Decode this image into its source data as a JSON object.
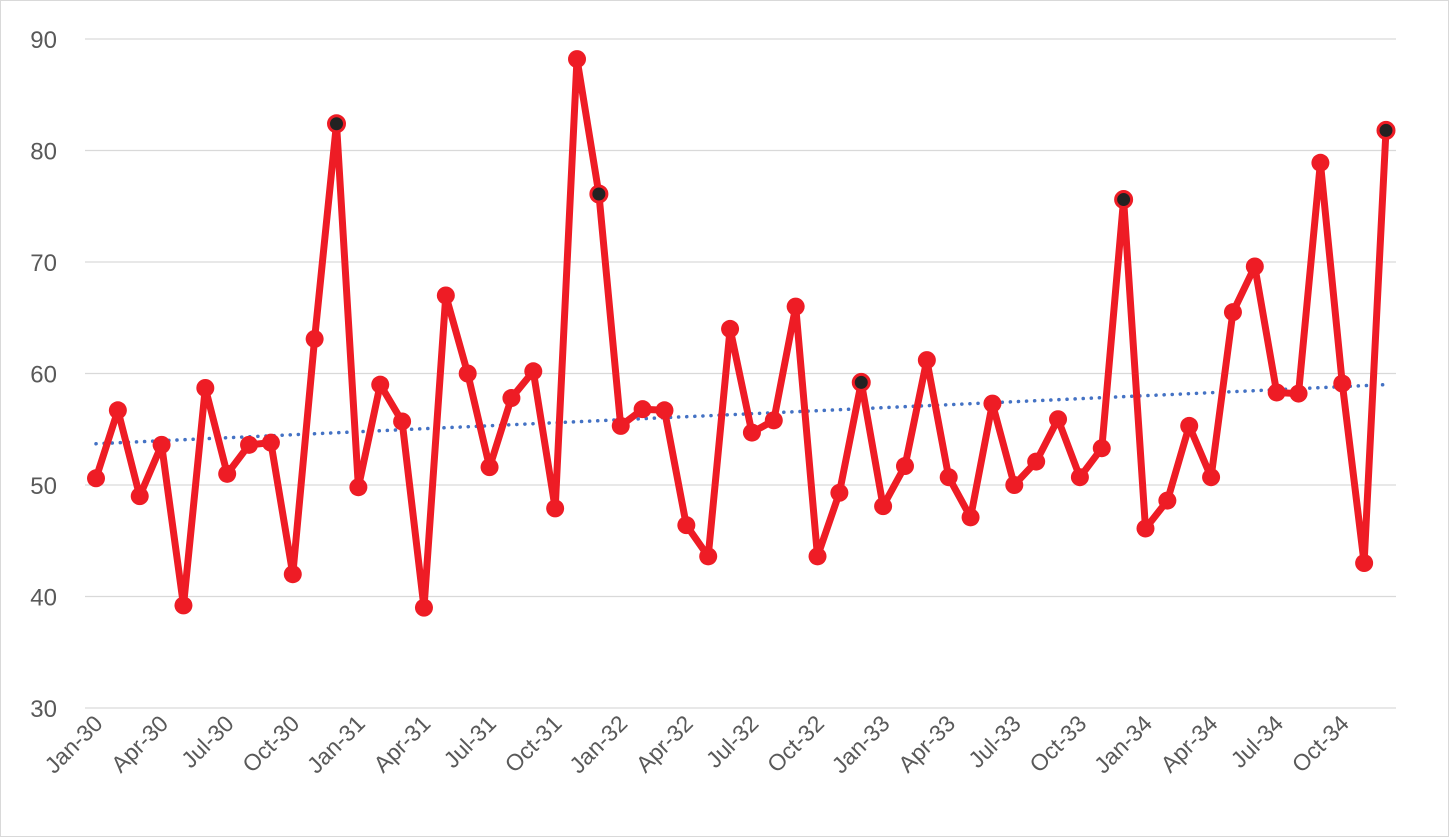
{
  "chart_data": {
    "type": "line",
    "title": "",
    "xlabel": "",
    "ylabel": "",
    "ylim": [
      30,
      90
    ],
    "y_ticks": [
      "30",
      "40",
      "50",
      "60",
      "70",
      "80",
      "90"
    ],
    "y_tick_values": [
      30,
      40,
      50,
      60,
      70,
      80,
      90
    ],
    "x_tick_labels": [
      "Jan-30",
      "Apr-30",
      "Jul-30",
      "Oct-30",
      "Jan-31",
      "Apr-31",
      "Jul-31",
      "Oct-31",
      "Jan-32",
      "Apr-32",
      "Jul-32",
      "Oct-32",
      "Jan-33",
      "Apr-33",
      "Jul-33",
      "Oct-33",
      "Jan-34",
      "Apr-34",
      "Jul-34",
      "Oct-34"
    ],
    "x_tick_every": 3,
    "grid": "horizontal",
    "legend": "none",
    "x": [
      "Jan-30",
      "Feb-30",
      "Mar-30",
      "Apr-30",
      "May-30",
      "Jun-30",
      "Jul-30",
      "Aug-30",
      "Sep-30",
      "Oct-30",
      "Nov-30",
      "Dec-30",
      "Jan-31",
      "Feb-31",
      "Mar-31",
      "Apr-31",
      "May-31",
      "Jun-31",
      "Jul-31",
      "Aug-31",
      "Sep-31",
      "Oct-31",
      "Nov-31",
      "Dec-31",
      "Jan-32",
      "Feb-32",
      "Mar-32",
      "Apr-32",
      "May-32",
      "Jun-32",
      "Jul-32",
      "Aug-32",
      "Sep-32",
      "Oct-32",
      "Nov-32",
      "Dec-32",
      "Jan-33",
      "Feb-33",
      "Mar-33",
      "Apr-33",
      "May-33",
      "Jun-33",
      "Jul-33",
      "Aug-33",
      "Sep-33",
      "Oct-33",
      "Nov-33",
      "Dec-33",
      "Jan-34",
      "Feb-34",
      "Mar-34",
      "Apr-34",
      "May-34",
      "Jun-34",
      "Jul-34",
      "Aug-34",
      "Sep-34",
      "Oct-34",
      "Nov-34",
      "Dec-34"
    ],
    "series": [
      {
        "color": "#ee1c25",
        "highlight_color": "#222222",
        "values": [
          50.6,
          56.7,
          49.0,
          53.6,
          39.2,
          58.7,
          51.0,
          53.6,
          53.8,
          42.0,
          63.1,
          82.4,
          49.8,
          59.0,
          55.7,
          39.0,
          67.0,
          60.0,
          51.6,
          57.8,
          60.2,
          47.9,
          88.2,
          76.1,
          55.3,
          56.8,
          56.7,
          46.4,
          43.6,
          64.0,
          54.7,
          55.8,
          66.0,
          43.6,
          49.3,
          59.2,
          48.1,
          51.7,
          61.2,
          50.7,
          47.1,
          57.3,
          50.0,
          52.1,
          55.9,
          50.7,
          53.3,
          75.6,
          46.1,
          48.6,
          55.3,
          50.7,
          65.5,
          69.6,
          58.3,
          58.2,
          78.9,
          59.1,
          43.0,
          81.8
        ],
        "highlighted": [
          11,
          23,
          35,
          47,
          59
        ]
      }
    ],
    "trendline": {
      "type": "linear",
      "color": "#4472c4",
      "style": "dotted",
      "start": 53.7,
      "end": 59.0
    }
  }
}
